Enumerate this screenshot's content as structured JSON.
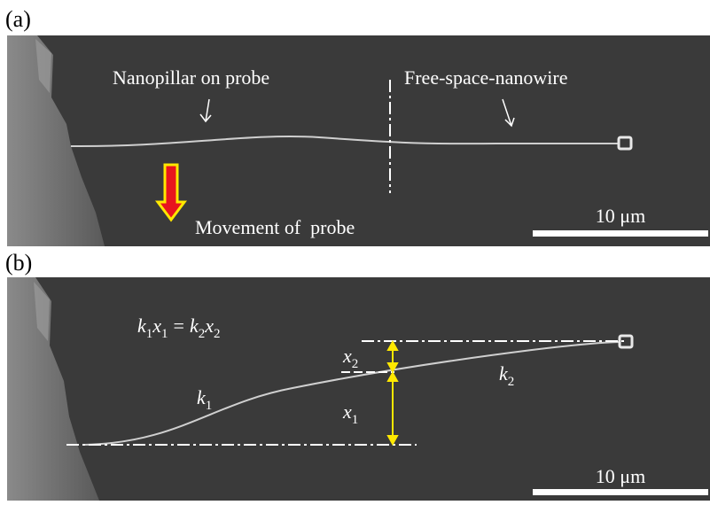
{
  "panels": [
    {
      "label": "(a)",
      "annotations": {
        "nanopillar": "Nanopillar on probe",
        "nanowire": "Free-space-nanowire",
        "movement": "Movement of  probe"
      },
      "scale_bar": "10 μm"
    },
    {
      "label": "(b)",
      "equation": {
        "lhs": [
          {
            "base": "k",
            "sub": "1"
          },
          {
            "base": "x",
            "sub": "1"
          }
        ],
        "op": "=",
        "rhs": [
          {
            "base": "k",
            "sub": "2"
          },
          {
            "base": "x",
            "sub": "2"
          }
        ]
      },
      "symbols": {
        "k1": {
          "base": "k",
          "sub": "1"
        },
        "k2": {
          "base": "k",
          "sub": "2"
        },
        "x1": {
          "base": "x",
          "sub": "1"
        },
        "x2": {
          "base": "x",
          "sub": "2"
        }
      },
      "scale_bar": "10 μm"
    }
  ]
}
